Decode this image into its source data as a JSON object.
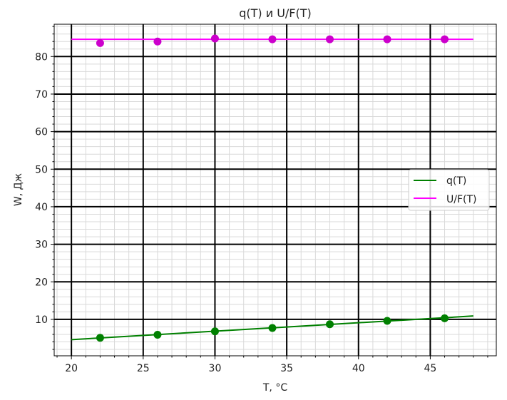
{
  "chart_data": {
    "type": "line",
    "title": "q(T) и U/F(T)",
    "xlabel": "T, °C",
    "ylabel": "W, Дж",
    "xlim": [
      18.8,
      49.6
    ],
    "ylim": [
      0.3,
      88.6
    ],
    "xticks": [
      20,
      25,
      30,
      35,
      40,
      45
    ],
    "yticks": [
      10,
      20,
      30,
      40,
      50,
      60,
      70,
      80
    ],
    "grid": true,
    "minor_grid": true,
    "legend_position": "right",
    "series": [
      {
        "name": "q(T)",
        "color": "#008000",
        "line": {
          "x": [
            20,
            48
          ],
          "y": [
            4.6,
            10.9
          ]
        },
        "points": {
          "x": [
            22,
            26,
            30,
            34,
            38,
            42,
            46
          ],
          "y": [
            5.1,
            5.9,
            6.8,
            7.7,
            8.7,
            9.6,
            10.3
          ]
        }
      },
      {
        "name": "U/F(T)",
        "color": "#ff00ff",
        "marker_color": "#cc00cc",
        "line": {
          "x": [
            20,
            48
          ],
          "y": [
            84.6,
            84.6
          ]
        },
        "points": {
          "x": [
            22,
            26,
            30,
            34,
            38,
            42,
            46
          ],
          "y": [
            83.6,
            84.0,
            84.8,
            84.6,
            84.6,
            84.6,
            84.6
          ]
        }
      }
    ]
  }
}
